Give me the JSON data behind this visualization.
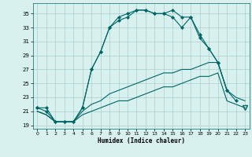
{
  "x": [
    0,
    1,
    2,
    3,
    4,
    5,
    6,
    7,
    8,
    9,
    10,
    11,
    12,
    13,
    14,
    15,
    16,
    17,
    18,
    19,
    20,
    21,
    22,
    23
  ],
  "line_main": [
    21.5,
    21.0,
    19.5,
    19.5,
    19.5,
    21.5,
    27.0,
    29.5,
    33.0,
    34.0,
    34.5,
    35.5,
    35.5,
    35.0,
    35.0,
    34.5,
    33.0,
    34.5,
    31.5,
    30.0,
    28.0,
    24.0,
    null,
    null
  ],
  "line_high": [
    21.5,
    21.5,
    19.5,
    19.5,
    19.5,
    21.5,
    27.0,
    29.5,
    33.0,
    34.5,
    35.0,
    35.5,
    35.5,
    35.0,
    35.0,
    35.5,
    34.5,
    34.5,
    32.0,
    30.0,
    28.0,
    24.0,
    22.5,
    null
  ],
  "line_avg": [
    21.0,
    20.5,
    19.5,
    19.5,
    19.5,
    21.0,
    22.0,
    22.5,
    23.5,
    24.0,
    24.5,
    25.0,
    25.5,
    26.0,
    26.5,
    26.5,
    27.0,
    27.0,
    27.5,
    28.0,
    28.0,
    24.0,
    23.0,
    22.5
  ],
  "line_low": [
    21.0,
    20.5,
    19.5,
    19.5,
    19.5,
    20.5,
    21.0,
    21.5,
    22.0,
    22.5,
    22.5,
    23.0,
    23.5,
    24.0,
    24.5,
    24.5,
    25.0,
    25.5,
    26.0,
    26.0,
    26.5,
    22.5,
    22.0,
    21.5
  ],
  "bg_color": "#d8f0ee",
  "line_color": "#006666",
  "grid_color": "#a8cece",
  "xlabel": "Humidex (Indice chaleur)",
  "ylim": [
    18.5,
    36.5
  ],
  "xlim": [
    -0.5,
    23.5
  ],
  "yticks": [
    19,
    21,
    23,
    25,
    27,
    29,
    31,
    33,
    35
  ],
  "xticks": [
    0,
    1,
    2,
    3,
    4,
    5,
    6,
    7,
    8,
    9,
    10,
    11,
    12,
    13,
    14,
    15,
    16,
    17,
    18,
    19,
    20,
    21,
    22,
    23
  ]
}
